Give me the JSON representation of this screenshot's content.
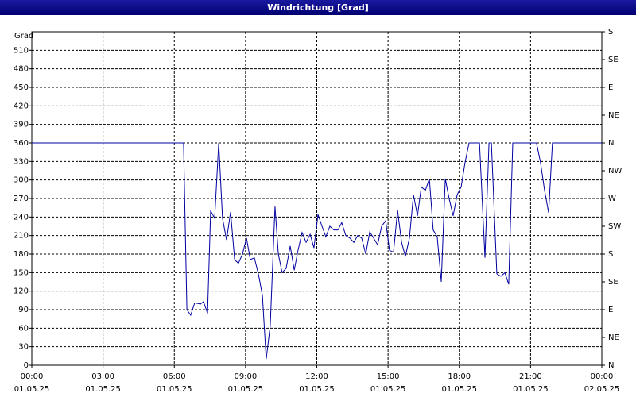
{
  "chart_data": {
    "type": "line",
    "title": "Windrichtung [Grad]",
    "y_label": "Grad",
    "x": [
      0,
      6.39,
      6.53,
      6.69,
      6.86,
      7.1,
      7.23,
      7.4,
      7.53,
      7.7,
      7.87,
      8.03,
      8.2,
      8.37,
      8.54,
      8.7,
      8.87,
      9.04,
      9.2,
      9.37,
      9.54,
      9.71,
      9.87,
      10.04,
      10.24,
      10.38,
      10.54,
      10.71,
      10.88,
      11.05,
      11.21,
      11.38,
      11.55,
      11.72,
      11.88,
      12.05,
      12.22,
      12.38,
      12.55,
      12.72,
      12.89,
      13.05,
      13.22,
      13.39,
      13.56,
      13.72,
      13.89,
      14.06,
      14.23,
      14.39,
      14.56,
      14.73,
      14.9,
      15.06,
      15.23,
      15.4,
      15.57,
      15.73,
      15.9,
      16.07,
      16.24,
      16.4,
      16.57,
      16.74,
      16.9,
      17.07,
      17.24,
      17.41,
      17.57,
      17.74,
      17.91,
      18.08,
      18.24,
      18.41,
      18.85,
      19.08,
      19.25,
      19.35,
      19.58,
      19.75,
      19.92,
      20.08,
      20.25,
      21.25,
      21.42,
      21.59,
      21.76,
      21.92,
      24
    ],
    "series": [
      {
        "name": "Windrichtung",
        "color": "#0000a0",
        "values": [
          360,
          360,
          90,
          81,
          101,
          99,
          103,
          84,
          250,
          238,
          360,
          238,
          203,
          248,
          171,
          165,
          180,
          206,
          171,
          174,
          148,
          113,
          10,
          64,
          257,
          180,
          150,
          157,
          193,
          154,
          186,
          215,
          199,
          212,
          190,
          244,
          225,
          208,
          225,
          219,
          219,
          231,
          210,
          206,
          199,
          210,
          206,
          180,
          216,
          206,
          195,
          225,
          234,
          186,
          183,
          251,
          199,
          176,
          206,
          276,
          242,
          289,
          283,
          302,
          219,
          208,
          135,
          302,
          270,
          242,
          276,
          289,
          328,
          360,
          360,
          174,
          360,
          360,
          148,
          144,
          150,
          131,
          360,
          360,
          328,
          283,
          247,
          360,
          360
        ]
      }
    ],
    "xlim": [
      0,
      24
    ],
    "xticks": [
      {
        "value": 0,
        "label": "00:00"
      },
      {
        "value": 3,
        "label": "03:00"
      },
      {
        "value": 6,
        "label": "06:00"
      },
      {
        "value": 9,
        "label": "09:00"
      },
      {
        "value": 12,
        "label": "12:00"
      },
      {
        "value": 15,
        "label": "15:00"
      },
      {
        "value": 18,
        "label": "18:00"
      },
      {
        "value": 21,
        "label": "21:00"
      },
      {
        "value": 24,
        "label": "00:00"
      }
    ],
    "xtick_dates": [
      "01.05.25",
      "01.05.25",
      "01.05.25",
      "01.05.25",
      "01.05.25",
      "01.05.25",
      "01.05.25",
      "01.05.25",
      "02.05.25"
    ],
    "ylim": [
      0,
      540
    ],
    "yticks": [
      0,
      30,
      60,
      90,
      120,
      150,
      180,
      210,
      240,
      270,
      300,
      330,
      360,
      390,
      420,
      450,
      480,
      510
    ],
    "y2lim": [
      0,
      540
    ],
    "y2ticks": [
      {
        "value": 0,
        "label": "N"
      },
      {
        "value": 45,
        "label": "NE"
      },
      {
        "value": 90,
        "label": "E"
      },
      {
        "value": 135,
        "label": "SE"
      },
      {
        "value": 180,
        "label": "S"
      },
      {
        "value": 225,
        "label": "SW"
      },
      {
        "value": 270,
        "label": "W"
      },
      {
        "value": 315,
        "label": "NW"
      },
      {
        "value": 360,
        "label": "N"
      },
      {
        "value": 405,
        "label": "NE"
      },
      {
        "value": 450,
        "label": "E"
      },
      {
        "value": 495,
        "label": "SE"
      },
      {
        "value": 540,
        "label": "S"
      }
    ],
    "grid": true
  }
}
